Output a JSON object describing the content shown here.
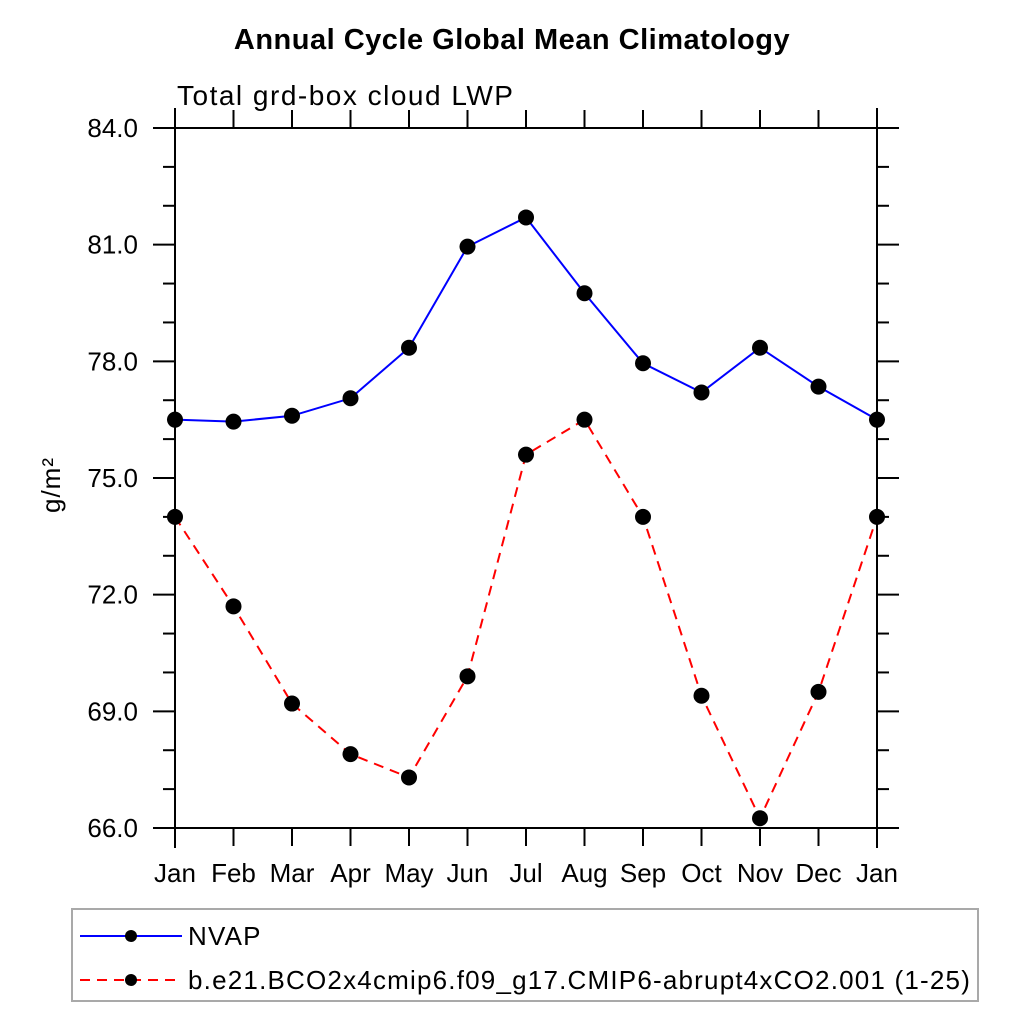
{
  "chart_data": {
    "type": "line",
    "title": "Annual Cycle Global Mean Climatology",
    "subtitle": "Total grd-box cloud LWP",
    "xlabel": "",
    "ylabel": "g/m²",
    "categories": [
      "Jan",
      "Feb",
      "Mar",
      "Apr",
      "May",
      "Jun",
      "Jul",
      "Aug",
      "Sep",
      "Oct",
      "Nov",
      "Dec",
      "Jan"
    ],
    "series": [
      {
        "name": "NVAP",
        "color": "#0000ff",
        "line_style": "solid",
        "marker": "filled-circle",
        "marker_color": "#000000",
        "values": [
          76.5,
          76.45,
          76.6,
          77.05,
          78.35,
          80.95,
          81.7,
          79.75,
          77.95,
          77.2,
          78.35,
          77.35,
          76.5
        ]
      },
      {
        "name": "b.e21.BCO2x4cmip6.f09_g17.CMIP6-abrupt4xCO2.001 (1-25)",
        "color": "#ff0000",
        "line_style": "dashed",
        "marker": "filled-circle",
        "marker_color": "#000000",
        "values": [
          74.0,
          71.7,
          69.2,
          67.9,
          67.3,
          69.9,
          75.6,
          76.5,
          74.0,
          69.4,
          66.25,
          69.5,
          74.0
        ]
      }
    ],
    "ylim": [
      66,
      84
    ],
    "yticks": [
      {
        "value": 66,
        "label": "66.0"
      },
      {
        "value": 69,
        "label": "69.0"
      },
      {
        "value": 72,
        "label": "72.0"
      },
      {
        "value": 75,
        "label": "75.0"
      },
      {
        "value": 78,
        "label": "78.0"
      },
      {
        "value": 81,
        "label": "81.0"
      },
      {
        "value": 84,
        "label": "84.0"
      }
    ],
    "minor_tick_step": 1,
    "grid": false,
    "legend_position": "bottom"
  },
  "colors": {
    "axis": "#000000",
    "text": "#000000",
    "legend_border": "#a9a9a9",
    "background": "#ffffff"
  }
}
